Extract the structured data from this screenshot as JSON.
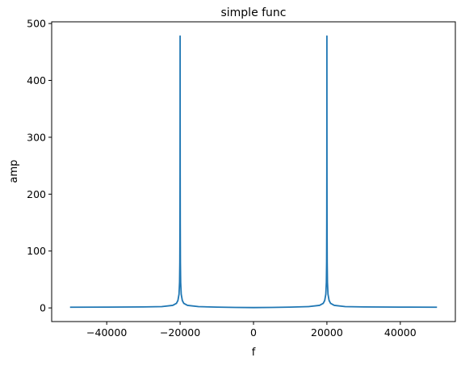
{
  "chart_data": {
    "type": "line",
    "title": "simple func",
    "xlabel": "f",
    "ylabel": "amp",
    "xlim": [
      -55000,
      55000
    ],
    "ylim": [
      -24,
      503
    ],
    "xticks": [
      -40000,
      -20000,
      0,
      20000,
      40000
    ],
    "yticks": [
      0,
      100,
      200,
      300,
      400,
      500
    ],
    "grid": false,
    "color": "#1f77b4",
    "series": [
      {
        "x": [
          -50000,
          -40000,
          -30000,
          -25000,
          -22000,
          -21000,
          -20600,
          -20300,
          -20150,
          -20080,
          -20040,
          -20020,
          -20010,
          -20005,
          -20000,
          -19995,
          -19990,
          -19980,
          -19960,
          -19920,
          -19850,
          -19700,
          -19400,
          -19000,
          -18000,
          -15000,
          -10000,
          -5000,
          0,
          5000,
          10000,
          15000,
          18000,
          19000,
          19400,
          19700,
          19850,
          19920,
          19960,
          19980,
          19990,
          19995,
          20000,
          20005,
          20010,
          20020,
          20040,
          20080,
          20150,
          20300,
          20600,
          21000,
          22000,
          25000,
          30000,
          40000,
          50000
        ],
        "y": [
          1.2,
          1.4,
          1.8,
          2.3,
          4.5,
          8.0,
          13,
          24,
          45,
          80,
          150,
          240,
          330,
          410,
          478,
          410,
          330,
          240,
          150,
          80,
          45,
          24,
          13,
          8.0,
          4.5,
          2.3,
          1.4,
          0.9,
          0.6,
          0.9,
          1.4,
          2.3,
          4.5,
          8.0,
          13,
          24,
          45,
          80,
          150,
          240,
          330,
          410,
          478,
          410,
          330,
          240,
          150,
          80,
          45,
          24,
          13,
          8.0,
          4.5,
          2.3,
          1.8,
          1.4,
          1.2
        ]
      }
    ]
  }
}
